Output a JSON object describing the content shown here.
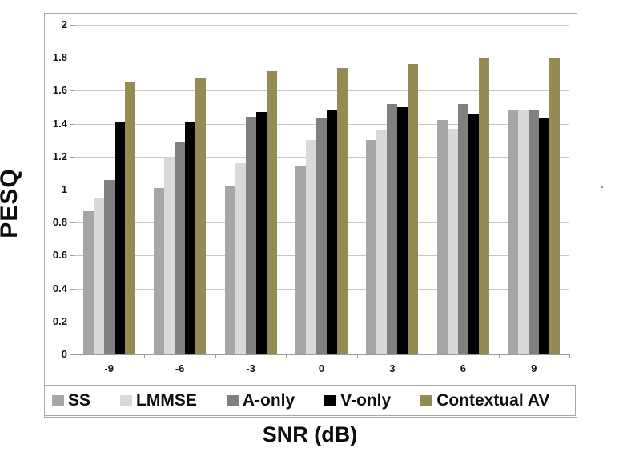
{
  "chart_data": {
    "type": "bar",
    "title": "",
    "xlabel": "SNR (dB)",
    "ylabel": "PESQ",
    "categories": [
      "-9",
      "-6",
      "-3",
      "0",
      "3",
      "6",
      "9"
    ],
    "series": [
      {
        "name": "SS",
        "color": "#a6a6a6",
        "values": [
          0.87,
          1.01,
          1.02,
          1.14,
          1.3,
          1.42,
          1.48
        ]
      },
      {
        "name": "LMMSE",
        "color": "#d9d9d9",
        "values": [
          0.95,
          1.2,
          1.16,
          1.3,
          1.36,
          1.37,
          1.48
        ]
      },
      {
        "name": "A-only",
        "color": "#808080",
        "values": [
          1.06,
          1.29,
          1.44,
          1.43,
          1.52,
          1.52,
          1.48
        ]
      },
      {
        "name": "V-only",
        "color": "#000000",
        "values": [
          1.41,
          1.41,
          1.47,
          1.48,
          1.5,
          1.46,
          1.43
        ]
      },
      {
        "name": "Contextual AV",
        "color": "#948a54",
        "values": [
          1.65,
          1.68,
          1.72,
          1.74,
          1.76,
          1.8,
          1.8
        ]
      }
    ],
    "ylim": [
      0,
      2
    ],
    "ytick_step": 0.2,
    "ytick_labels": [
      "0",
      "0.2",
      "0.4",
      "0.6",
      "0.8",
      "1",
      "1.2",
      "1.4",
      "1.6",
      "1.8",
      "2"
    ],
    "grid": "horizontal",
    "legend_position": "bottom",
    "colors": {
      "gridline": "#c6c6c6",
      "axis": "#9b9b9b",
      "frame_border": "#a6a6a6",
      "text": "#0d0d0d"
    }
  }
}
